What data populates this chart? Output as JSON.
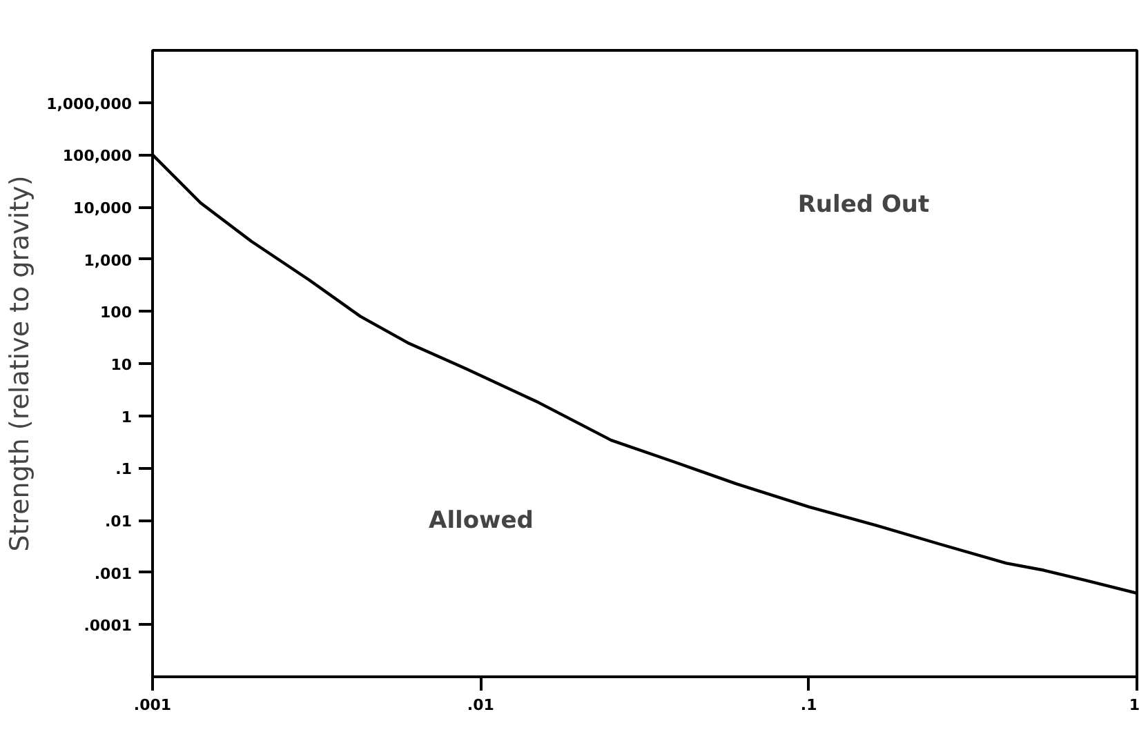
{
  "chart_data": {
    "type": "line",
    "ylabel": "Strength (relative to gravity)",
    "log": "xy",
    "grid": false,
    "marker": "none",
    "line_style": "solid",
    "x": [
      0.001,
      0.0014,
      0.002,
      0.003,
      0.0043,
      0.006,
      0.009,
      0.015,
      0.025,
      0.039,
      0.06,
      0.1,
      0.16,
      0.25,
      0.4,
      0.52,
      0.7,
      1
    ],
    "series": [
      {
        "color": "#000000",
        "values": [
          100000,
          12000,
          2200,
          400,
          80,
          25,
          8,
          1.8,
          0.34,
          0.13,
          0.05,
          0.018,
          0.008,
          0.0035,
          0.0015,
          0.0011,
          0.0007,
          0.0004
        ]
      }
    ],
    "xlim": [
      0.001,
      1
    ],
    "ylim": [
      1e-05,
      10000000
    ],
    "xticks": [
      {
        "value": 0.001,
        "label": ".001"
      },
      {
        "value": 0.01,
        "label": ".01"
      },
      {
        "value": 0.1,
        "label": ".1"
      },
      1
    ],
    "yticks": [
      {
        "value": 0.0001,
        "label": ".0001"
      },
      {
        "value": 0.001,
        "label": ".001"
      },
      {
        "value": 0.01,
        "label": ".01"
      },
      {
        "value": 0.1,
        "label": ".1"
      },
      1,
      10,
      100,
      {
        "value": 1000,
        "label": "1,000"
      },
      {
        "value": 10000,
        "label": "10,000"
      },
      {
        "value": 100000,
        "label": "100,000"
      },
      {
        "value": 1000000,
        "label": "1,000,000"
      }
    ],
    "annotations": [
      "Ruled Out",
      "Allowed"
    ]
  }
}
